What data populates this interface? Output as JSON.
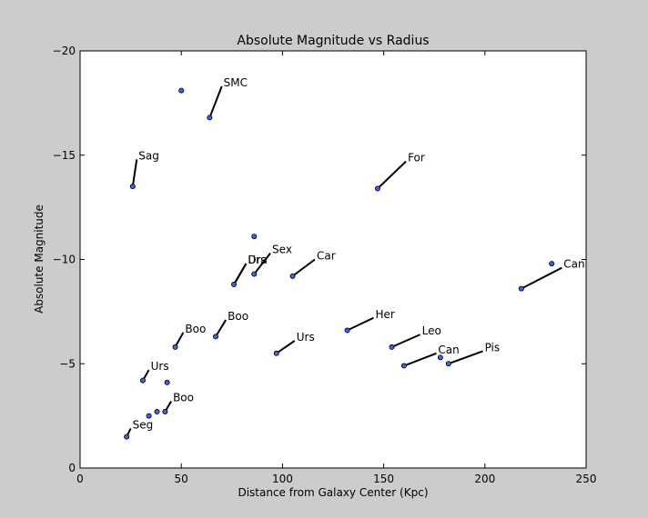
{
  "chart_data": {
    "type": "scatter",
    "title": "Absolute Magnitude vs Radius",
    "xlabel": "Distance from Galaxy Center (Kpc)",
    "ylabel": "Absolute Magnitude",
    "xlim": [
      0,
      250
    ],
    "ylim": [
      0,
      -20
    ],
    "y_inverted": true,
    "grid": false,
    "marker_color": "#3f5ff0",
    "x_ticks": [
      0,
      50,
      100,
      150,
      200,
      250
    ],
    "x_tick_labels": [
      "0",
      "50",
      "100",
      "150",
      "200",
      "250"
    ],
    "y_ticks": [
      0,
      -5,
      -10,
      -15,
      -20
    ],
    "y_tick_labels": [
      "0",
      "−5",
      "−10",
      "−15",
      "−20"
    ],
    "points": [
      {
        "x": 50,
        "y": -18.1
      },
      {
        "x": 64,
        "y": -16.8
      },
      {
        "x": 26,
        "y": -13.5
      },
      {
        "x": 147,
        "y": -13.4
      },
      {
        "x": 86,
        "y": -11.1
      },
      {
        "x": 233,
        "y": -9.8
      },
      {
        "x": 218,
        "y": -8.6
      },
      {
        "x": 105,
        "y": -9.2
      },
      {
        "x": 86,
        "y": -9.3
      },
      {
        "x": 76,
        "y": -8.8
      },
      {
        "x": 132,
        "y": -6.6
      },
      {
        "x": 67,
        "y": -6.3
      },
      {
        "x": 47,
        "y": -5.8
      },
      {
        "x": 154,
        "y": -5.8
      },
      {
        "x": 97,
        "y": -5.5
      },
      {
        "x": 178,
        "y": -5.3
      },
      {
        "x": 160,
        "y": -4.9
      },
      {
        "x": 182,
        "y": -5.0
      },
      {
        "x": 31,
        "y": -4.2
      },
      {
        "x": 43,
        "y": -4.1
      },
      {
        "x": 38,
        "y": -2.7
      },
      {
        "x": 42,
        "y": -2.7
      },
      {
        "x": 34,
        "y": -2.5
      },
      {
        "x": 23,
        "y": -1.5
      }
    ],
    "annotations": [
      {
        "text": "SMC",
        "x": 64,
        "y": -16.8,
        "tx": 70,
        "ty": -18.3
      },
      {
        "text": "Sag",
        "x": 26,
        "y": -13.5,
        "tx": 28,
        "ty": -14.8
      },
      {
        "text": "For",
        "x": 147,
        "y": -13.4,
        "tx": 161,
        "ty": -14.7
      },
      {
        "text": "Can",
        "x": 218,
        "y": -8.6,
        "tx": 238,
        "ty": -9.6
      },
      {
        "text": "Car",
        "x": 105,
        "y": -9.2,
        "tx": 116,
        "ty": -10.0
      },
      {
        "text": "Sex",
        "x": 86,
        "y": -9.3,
        "tx": 94,
        "ty": -10.3
      },
      {
        "text": "Dra",
        "x": 76,
        "y": -8.8,
        "tx": 82,
        "ty": -9.8
      },
      {
        "text": "Urs",
        "x": 76,
        "y": -8.8,
        "tx": 82,
        "ty": -9.8
      },
      {
        "text": "Her",
        "x": 132,
        "y": -6.6,
        "tx": 145,
        "ty": -7.2
      },
      {
        "text": "Boo",
        "x": 67,
        "y": -6.3,
        "tx": 72,
        "ty": -7.1
      },
      {
        "text": "Boo",
        "x": 47,
        "y": -5.8,
        "tx": 51,
        "ty": -6.5
      },
      {
        "text": "Leo",
        "x": 154,
        "y": -5.8,
        "tx": 168,
        "ty": -6.4
      },
      {
        "text": "Urs",
        "x": 97,
        "y": -5.5,
        "tx": 106,
        "ty": -6.1
      },
      {
        "text": "Can",
        "x": 160,
        "y": -4.9,
        "tx": 176,
        "ty": -5.5
      },
      {
        "text": "Pis",
        "x": 182,
        "y": -5.0,
        "tx": 199,
        "ty": -5.6
      },
      {
        "text": "Urs",
        "x": 31,
        "y": -4.2,
        "tx": 34,
        "ty": -4.7
      },
      {
        "text": "Boo",
        "x": 42,
        "y": -2.7,
        "tx": 45,
        "ty": -3.2
      },
      {
        "text": "Seg",
        "x": 23,
        "y": -1.5,
        "tx": 25,
        "ty": -1.9
      }
    ]
  }
}
